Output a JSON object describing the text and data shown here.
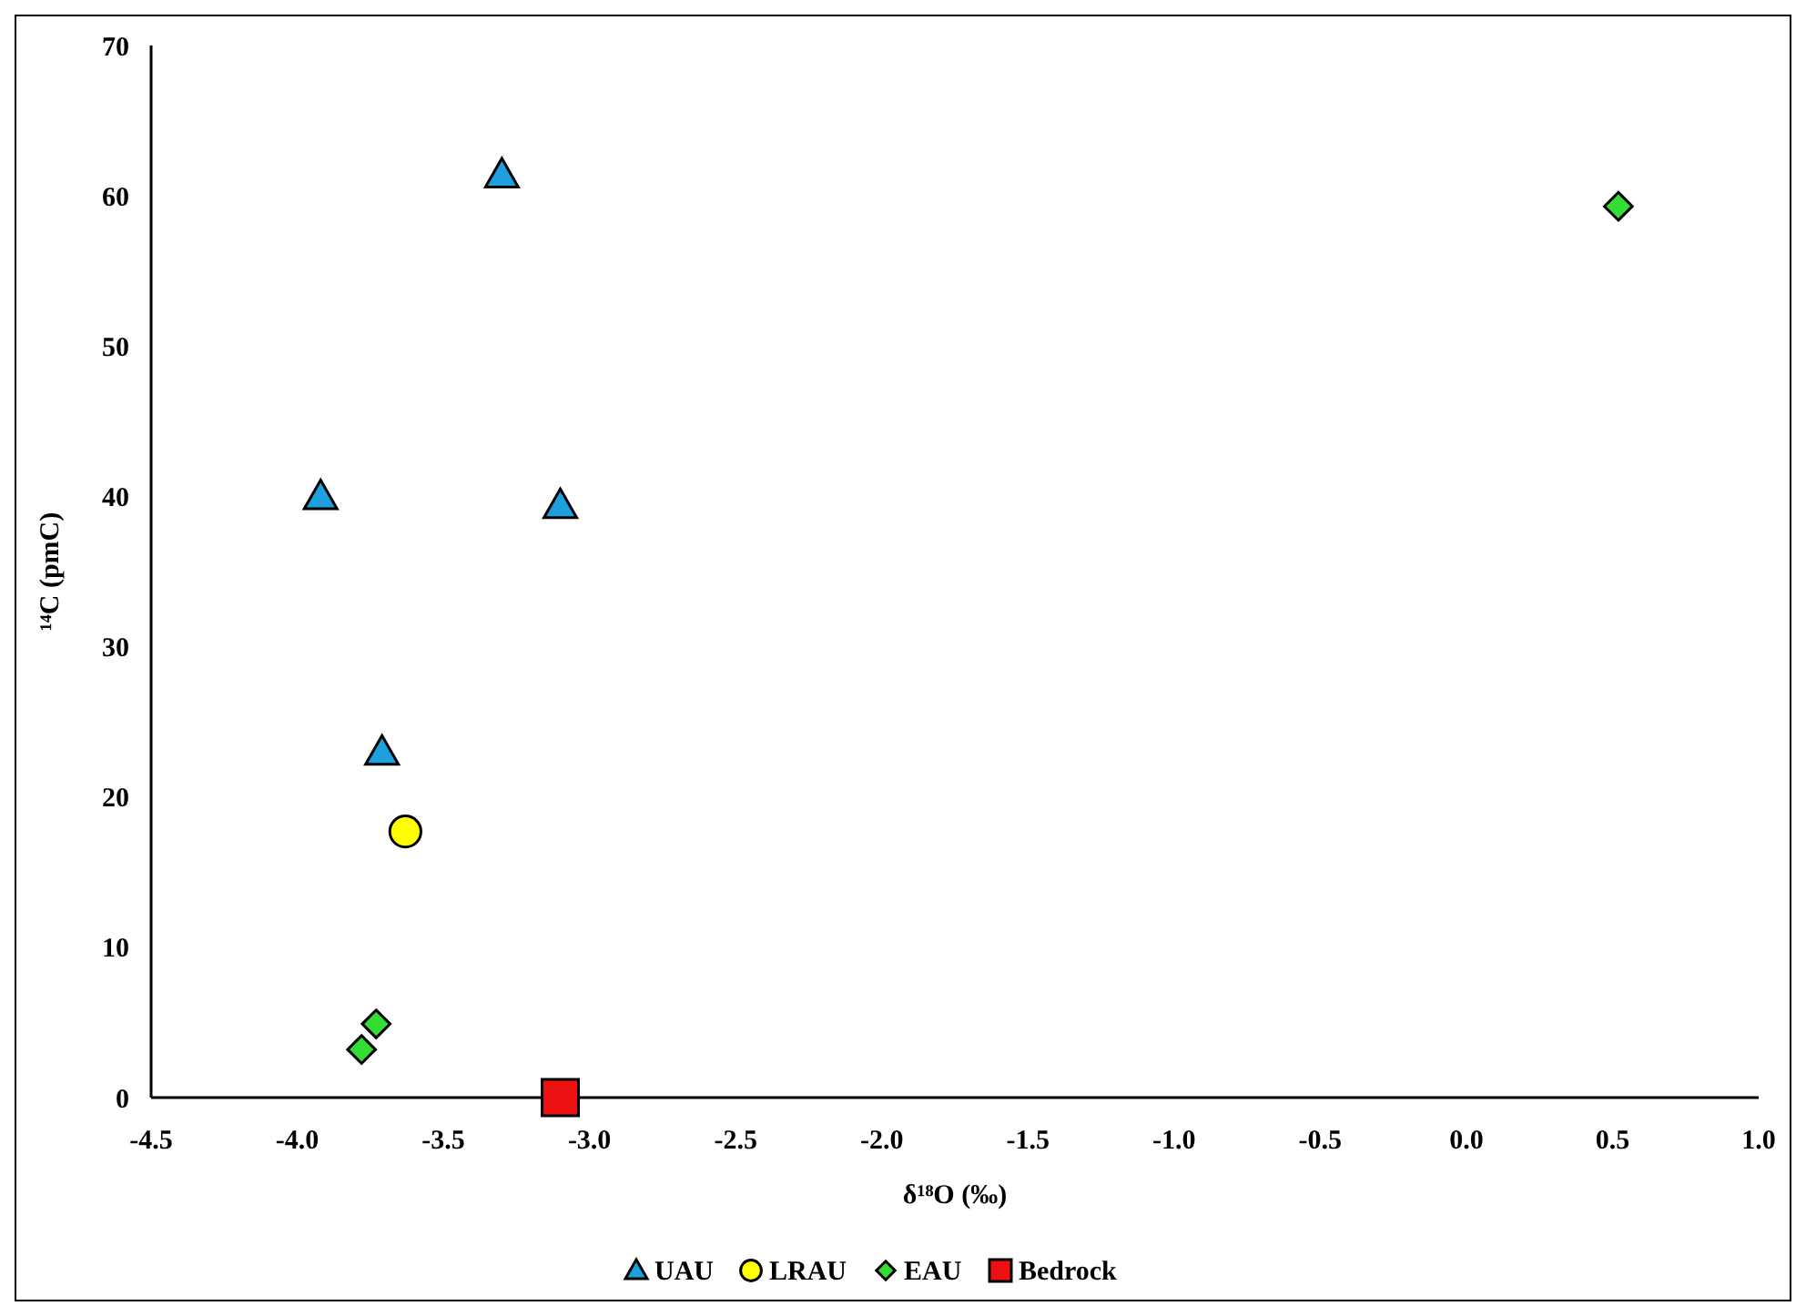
{
  "chart_data": {
    "type": "scatter",
    "xlabel": "δ¹⁸O (‰)",
    "ylabel": "¹⁴C (pmC)",
    "xlim": [
      -4.5,
      1.0
    ],
    "xticks": [
      {
        "value": -4.5,
        "label": "-4.5"
      },
      {
        "value": -4,
        "label": "-4.0"
      },
      {
        "value": -3.5,
        "label": "-3.5"
      },
      {
        "value": -3,
        "label": "-3.0"
      },
      {
        "value": -2.5,
        "label": "-2.5"
      },
      {
        "value": -2,
        "label": "-2.0"
      },
      {
        "value": -1.5,
        "label": "-1.5"
      },
      {
        "value": -1,
        "label": "-1.0"
      },
      {
        "value": -0.5,
        "label": "-0.5"
      },
      {
        "value": 0,
        "label": "0.0"
      },
      {
        "value": 0.5,
        "label": "0.5"
      },
      {
        "value": 1,
        "label": "1.0"
      }
    ],
    "ylim": [
      0,
      70
    ],
    "yticks": [
      0,
      10,
      20,
      30,
      40,
      50,
      60,
      70
    ],
    "grid": false,
    "legend": "bottom",
    "series": [
      {
        "name": "UAU",
        "color": "#1ea0de",
        "marker": "triangle",
        "x": [
          -3.92,
          -3.3,
          -3.1,
          -3.71
        ],
        "values": [
          40.0,
          61.4,
          39.4,
          23.0
        ]
      },
      {
        "name": "LRAU",
        "color": "#ffff00",
        "marker": "circle",
        "x": [
          -3.63
        ],
        "values": [
          17.7
        ]
      },
      {
        "name": "EAU",
        "color": "#33dd33",
        "marker": "diamond",
        "x": [
          0.52,
          -3.73,
          -3.78
        ],
        "values": [
          59.3,
          4.9,
          3.2
        ]
      },
      {
        "name": "Bedrock",
        "color": "#ee1111",
        "marker": "square",
        "x": [
          -3.1
        ],
        "values": [
          0
        ]
      }
    ]
  }
}
